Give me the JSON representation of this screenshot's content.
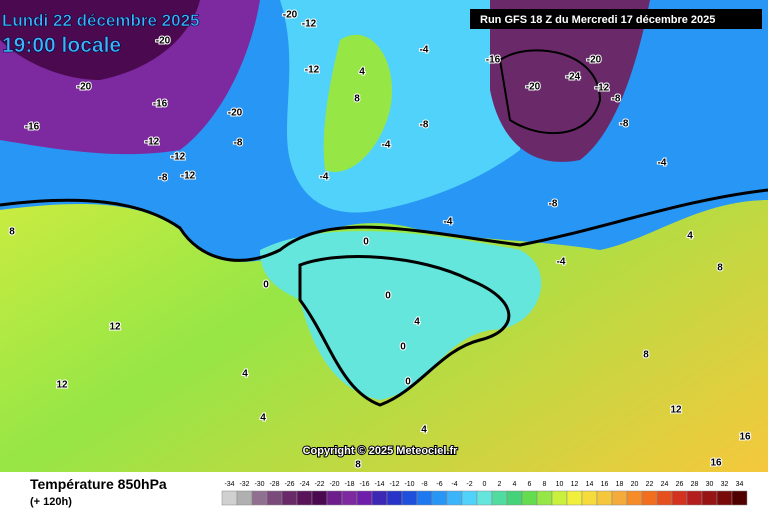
{
  "header": {
    "date": "Lundi 22 décembre 2025",
    "time": "19:00 locale",
    "run": "Run GFS 18 Z du Mercredi 17 décembre 2025"
  },
  "footer": {
    "title": "Température 850hPa",
    "lead": "(+ 120h)",
    "copyright": "Copyright © 2025 Meteociel.fr"
  },
  "map_labels": [
    -20,
    -16,
    -20,
    -16,
    -12,
    -12,
    -8,
    -12,
    -20,
    -8,
    -12,
    -20,
    -12,
    4,
    8,
    -4,
    -8,
    -4,
    -4,
    -16,
    -20,
    -24,
    -20,
    -12,
    -8,
    -8,
    -4,
    -8,
    -4,
    -4,
    0,
    0,
    0,
    4,
    0,
    0,
    4,
    12,
    12,
    8,
    8,
    4,
    4,
    12,
    16,
    16,
    8,
    4,
    8
  ],
  "legend": {
    "values": [
      -34,
      -32,
      -30,
      -28,
      -26,
      -24,
      -22,
      -20,
      -18,
      -16,
      -14,
      -12,
      -10,
      -8,
      -6,
      -4,
      -2,
      0,
      2,
      4,
      6,
      8,
      10,
      12,
      14,
      16,
      18,
      20,
      22,
      24,
      26,
      28,
      30,
      32,
      34
    ],
    "colors": [
      "#d0d0d0",
      "#b0b0b0",
      "#907090",
      "#7a4a7a",
      "#6a2a6a",
      "#5a145a",
      "#4b0a50",
      "#6e1e8c",
      "#7d2aa0",
      "#6e1eaa",
      "#3c28b4",
      "#2834c8",
      "#1e50dc",
      "#1e78f0",
      "#2896f5",
      "#3cb4fa",
      "#50d2fa",
      "#64e6dc",
      "#50dca0",
      "#46d278",
      "#64dc50",
      "#96e646",
      "#c8f03c",
      "#f0f03c",
      "#f5dc3c",
      "#f5c83c",
      "#f5aa3c",
      "#f58c28",
      "#f06e1e",
      "#e6501e",
      "#d2321e",
      "#b41e1e",
      "#961414",
      "#780a0a",
      "#500000"
    ]
  }
}
